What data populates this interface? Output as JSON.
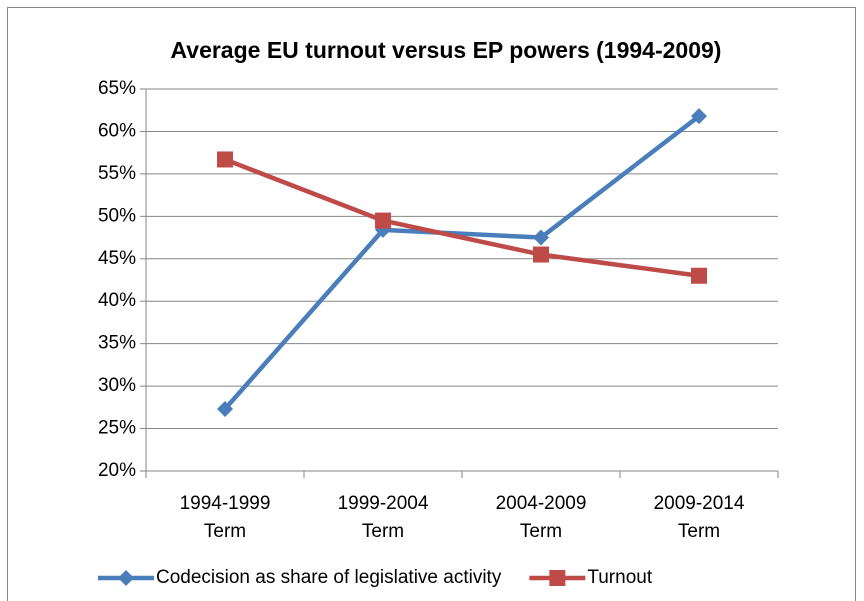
{
  "chart_data": {
    "type": "line",
    "title": "Average EU turnout versus EP powers (1994-2009)",
    "categories": [
      "1994-1999 Term",
      "1999-2004 Term",
      "2004-2009 Term",
      "2009-2014 Term"
    ],
    "series": [
      {
        "name": "Codecision as share of legislative activity",
        "color": "#4a7ebb",
        "marker": "diamond",
        "values": [
          27.3,
          48.4,
          47.5,
          61.8
        ]
      },
      {
        "name": "Turnout",
        "color": "#be4b48",
        "marker": "square",
        "values": [
          56.7,
          49.5,
          45.5,
          43.0
        ]
      }
    ],
    "ylim": [
      20,
      65
    ],
    "yticks": [
      {
        "value": 20,
        "label": "20%"
      },
      {
        "value": 25,
        "label": "25%"
      },
      {
        "value": 30,
        "label": "30%"
      },
      {
        "value": 35,
        "label": "35%"
      },
      {
        "value": 40,
        "label": "40%"
      },
      {
        "value": 45,
        "label": "45%"
      },
      {
        "value": 50,
        "label": "50%"
      },
      {
        "value": 55,
        "label": "55%"
      },
      {
        "value": 60,
        "label": "60%"
      },
      {
        "value": 65,
        "label": "65%"
      }
    ],
    "grid": true,
    "legend": "bottom"
  }
}
